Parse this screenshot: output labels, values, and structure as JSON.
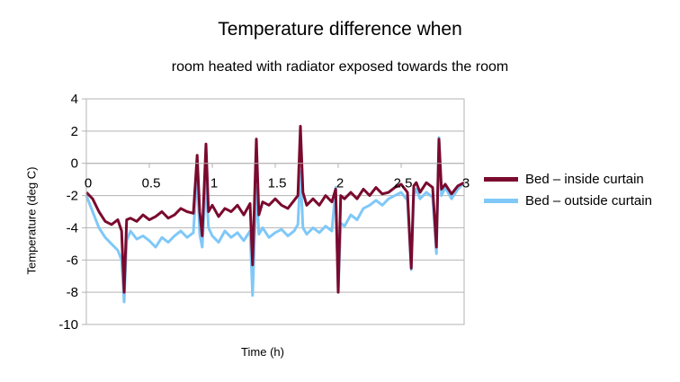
{
  "chart_data": {
    "type": "line",
    "title": "Temperature difference when",
    "subtitle": "room heated with radiator exposed towards the room",
    "xlabel": "Time (h)",
    "ylabel": "Temperature (deg C)",
    "xlim": [
      0,
      3
    ],
    "ylim": [
      -10,
      4
    ],
    "x_ticks": [
      "0",
      "0.5",
      "1",
      "1.5",
      "2",
      "2.5",
      "3"
    ],
    "y_ticks": [
      "4",
      "2",
      "0",
      "-2",
      "-4",
      "-6",
      "-8",
      "-10"
    ],
    "grid": "horizontal",
    "legend_position": "right",
    "series": [
      {
        "name": "Bed – inside curtain",
        "color": "#7a0a2e",
        "x": [
          0,
          0.05,
          0.1,
          0.15,
          0.2,
          0.25,
          0.28,
          0.3,
          0.32,
          0.35,
          0.4,
          0.45,
          0.5,
          0.55,
          0.6,
          0.65,
          0.7,
          0.75,
          0.8,
          0.85,
          0.88,
          0.9,
          0.92,
          0.95,
          0.97,
          1.0,
          1.05,
          1.1,
          1.15,
          1.2,
          1.25,
          1.3,
          1.32,
          1.35,
          1.37,
          1.4,
          1.45,
          1.5,
          1.55,
          1.6,
          1.65,
          1.68,
          1.7,
          1.72,
          1.75,
          1.8,
          1.85,
          1.9,
          1.95,
          1.98,
          2.0,
          2.02,
          2.05,
          2.1,
          2.15,
          2.2,
          2.25,
          2.3,
          2.35,
          2.4,
          2.45,
          2.5,
          2.55,
          2.58,
          2.6,
          2.62,
          2.65,
          2.7,
          2.75,
          2.78,
          2.8,
          2.82,
          2.85,
          2.9,
          2.95,
          3.0
        ],
        "y": [
          -1.8,
          -2.2,
          -3.0,
          -3.6,
          -3.8,
          -3.5,
          -4.2,
          -8.0,
          -3.5,
          -3.4,
          -3.6,
          -3.2,
          -3.5,
          -3.3,
          -3.0,
          -3.4,
          -3.2,
          -2.8,
          -3.0,
          -3.1,
          0.5,
          -3.0,
          -4.5,
          1.2,
          -3.0,
          -2.6,
          -3.3,
          -2.8,
          -3.0,
          -2.6,
          -3.2,
          -2.5,
          -6.3,
          1.5,
          -3.2,
          -2.4,
          -2.6,
          -2.2,
          -2.6,
          -2.8,
          -2.3,
          -2.0,
          2.3,
          -1.8,
          -2.6,
          -2.2,
          -2.6,
          -2.0,
          -2.4,
          -1.6,
          -8.0,
          -2.0,
          -2.2,
          -1.8,
          -2.2,
          -1.6,
          -2.0,
          -1.5,
          -1.9,
          -1.8,
          -1.5,
          -1.3,
          -1.8,
          -6.5,
          -1.4,
          -1.2,
          -1.8,
          -1.2,
          -1.5,
          -5.2,
          1.5,
          -1.6,
          -1.3,
          -1.9,
          -1.4,
          -1.2
        ]
      },
      {
        "name": "Bed – outside curtain",
        "color": "#7fc8f8",
        "x": [
          0,
          0.05,
          0.1,
          0.15,
          0.2,
          0.25,
          0.28,
          0.3,
          0.32,
          0.35,
          0.4,
          0.45,
          0.5,
          0.55,
          0.6,
          0.65,
          0.7,
          0.75,
          0.8,
          0.85,
          0.88,
          0.9,
          0.92,
          0.95,
          0.97,
          1.0,
          1.05,
          1.1,
          1.15,
          1.2,
          1.25,
          1.3,
          1.32,
          1.35,
          1.37,
          1.4,
          1.45,
          1.5,
          1.55,
          1.6,
          1.65,
          1.68,
          1.7,
          1.72,
          1.75,
          1.8,
          1.85,
          1.9,
          1.95,
          1.98,
          2.0,
          2.02,
          2.05,
          2.1,
          2.15,
          2.2,
          2.25,
          2.3,
          2.35,
          2.4,
          2.45,
          2.5,
          2.55,
          2.58,
          2.6,
          2.62,
          2.65,
          2.7,
          2.75,
          2.78,
          2.8,
          2.82,
          2.85,
          2.9,
          2.95,
          3.0
        ],
        "y": [
          -2.0,
          -3.0,
          -4.0,
          -4.6,
          -5.0,
          -5.4,
          -6.0,
          -8.6,
          -4.8,
          -4.2,
          -4.7,
          -4.5,
          -4.8,
          -5.2,
          -4.6,
          -4.9,
          -4.5,
          -4.2,
          -4.6,
          -4.3,
          -0.5,
          -4.4,
          -5.2,
          -1.0,
          -4.0,
          -4.5,
          -4.9,
          -4.2,
          -4.6,
          -4.3,
          -4.8,
          -4.2,
          -8.2,
          -1.5,
          -4.4,
          -4.0,
          -4.6,
          -4.3,
          -4.1,
          -4.5,
          -4.2,
          -3.8,
          -0.5,
          -4.0,
          -4.4,
          -4.0,
          -4.3,
          -3.9,
          -4.2,
          -1.5,
          -8.0,
          -3.7,
          -3.9,
          -3.2,
          -3.5,
          -2.8,
          -2.6,
          -2.3,
          -2.6,
          -2.2,
          -2.0,
          -1.8,
          -2.3,
          -6.6,
          -2.0,
          -1.6,
          -2.2,
          -1.8,
          -2.1,
          -5.6,
          1.6,
          -2.0,
          -1.5,
          -2.2,
          -1.6,
          -1.2
        ]
      }
    ]
  }
}
